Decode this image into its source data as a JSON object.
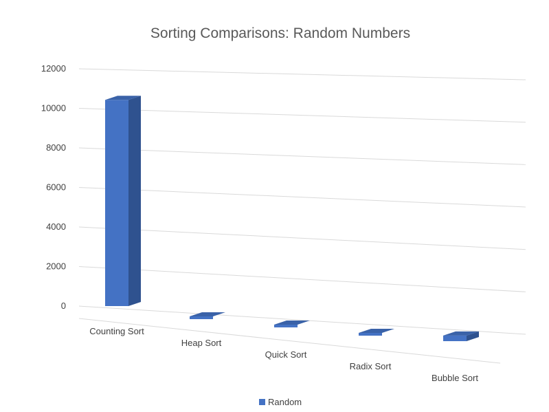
{
  "chart_data": {
    "type": "bar",
    "title": "Sorting Comparisons: Random Numbers",
    "xlabel": "",
    "ylabel": "",
    "categories": [
      "Counting Sort",
      "Heap Sort",
      "Quick Sort",
      "Radix Sort",
      "Bubble Sort"
    ],
    "series": [
      {
        "name": "Random",
        "color": "#4472C4",
        "values": [
          11000,
          0,
          0,
          0,
          300
        ]
      }
    ],
    "ylim": [
      0,
      12000
    ],
    "yticks": [
      0,
      2000,
      4000,
      6000,
      8000,
      10000,
      12000
    ],
    "grid": true,
    "legend": "bottom",
    "style": "3d-column"
  }
}
